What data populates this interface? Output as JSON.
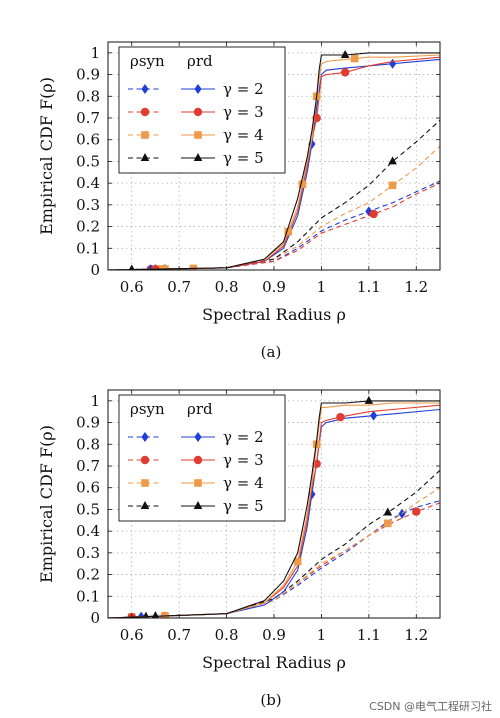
{
  "colors": {
    "blue": "#1f3fd6",
    "red": "#e03c31",
    "orange": "#ef9a4a",
    "black": "#111111"
  },
  "watermark": "CSDN @电气工程研习社",
  "chart_data": [
    {
      "type": "line",
      "caption": "(a)",
      "xlabel": "Spectral Radius ρ",
      "ylabel": "Empirical CDF F(ρ)",
      "xlim": [
        0.55,
        1.25
      ],
      "ylim": [
        0,
        1.05
      ],
      "xticks": [
        "0.6",
        "0.7",
        "0.8",
        "0.9",
        "1",
        "1.1",
        "1.2"
      ],
      "yticks": [
        "0",
        "0.1",
        "0.2",
        "0.3",
        "0.4",
        "0.5",
        "0.6",
        "0.7",
        "0.8",
        "0.9",
        "1"
      ],
      "grid": true,
      "legend": {
        "position": "top-left",
        "headers": [
          "ρsyn",
          "ρrd"
        ],
        "entries": [
          "γ = 2",
          "γ = 3",
          "γ = 4",
          "γ = 5"
        ]
      },
      "series": [
        {
          "name": "ρsyn, γ = 2",
          "color": "blue",
          "style": "dashed",
          "marker": "diamond",
          "x": [
            0.55,
            0.8,
            0.9,
            0.95,
            1.0,
            1.05,
            1.1,
            1.15,
            1.2,
            1.25
          ],
          "y": [
            0,
            0.01,
            0.04,
            0.1,
            0.18,
            0.23,
            0.27,
            0.31,
            0.36,
            0.41
          ],
          "markers_at": [
            0.65,
            1.1
          ]
        },
        {
          "name": "ρsyn, γ = 3",
          "color": "red",
          "style": "dashed",
          "marker": "circle",
          "x": [
            0.55,
            0.8,
            0.9,
            0.95,
            1.0,
            1.05,
            1.1,
            1.15,
            1.2,
            1.25
          ],
          "y": [
            0,
            0.01,
            0.04,
            0.09,
            0.17,
            0.21,
            0.25,
            0.29,
            0.35,
            0.4
          ],
          "markers_at": [
            0.64,
            1.11
          ]
        },
        {
          "name": "ρsyn, γ = 4",
          "color": "orange",
          "style": "dashed",
          "marker": "square",
          "x": [
            0.55,
            0.8,
            0.9,
            0.95,
            1.0,
            1.05,
            1.1,
            1.15,
            1.2,
            1.25
          ],
          "y": [
            0,
            0.01,
            0.05,
            0.11,
            0.2,
            0.26,
            0.31,
            0.39,
            0.47,
            0.57
          ],
          "markers_at": [
            0.66,
            0.73,
            1.15
          ]
        },
        {
          "name": "ρsyn, γ = 5",
          "color": "black",
          "style": "dashed",
          "marker": "triangle",
          "x": [
            0.55,
            0.8,
            0.9,
            0.95,
            1.0,
            1.05,
            1.1,
            1.15,
            1.2,
            1.25
          ],
          "y": [
            0,
            0.01,
            0.05,
            0.13,
            0.24,
            0.31,
            0.39,
            0.5,
            0.59,
            0.69
          ],
          "markers_at": [
            0.6,
            0.67,
            1.15
          ]
        },
        {
          "name": "ρrd, γ = 2",
          "color": "blue",
          "style": "solid",
          "marker": "diamond",
          "x": [
            0.55,
            0.8,
            0.88,
            0.92,
            0.95,
            0.97,
            0.98,
            0.99,
            1.0,
            1.01,
            1.05,
            1.1,
            1.15,
            1.25
          ],
          "y": [
            0,
            0.01,
            0.04,
            0.1,
            0.25,
            0.45,
            0.58,
            0.75,
            0.9,
            0.92,
            0.93,
            0.94,
            0.95,
            0.97
          ],
          "markers_at": [
            0.64,
            0.98,
            1.15
          ]
        },
        {
          "name": "ρrd, γ = 3",
          "color": "red",
          "style": "solid",
          "marker": "circle",
          "x": [
            0.55,
            0.8,
            0.88,
            0.92,
            0.95,
            0.97,
            0.98,
            0.99,
            1.0,
            1.01,
            1.05,
            1.1,
            1.15,
            1.25
          ],
          "y": [
            0,
            0.01,
            0.04,
            0.11,
            0.27,
            0.48,
            0.6,
            0.7,
            0.89,
            0.9,
            0.91,
            0.94,
            0.96,
            0.98
          ],
          "markers_at": [
            0.65,
            0.99,
            1.05
          ]
        },
        {
          "name": "ρrd, γ = 4",
          "color": "orange",
          "style": "solid",
          "marker": "square",
          "x": [
            0.55,
            0.8,
            0.88,
            0.92,
            0.95,
            0.97,
            0.98,
            0.99,
            1.0,
            1.01,
            1.05,
            1.1,
            1.15,
            1.25
          ],
          "y": [
            0,
            0.01,
            0.05,
            0.12,
            0.29,
            0.5,
            0.6,
            0.8,
            0.95,
            0.96,
            0.97,
            0.98,
            0.98,
            0.99
          ],
          "markers_at": [
            0.67,
            0.93,
            0.96,
            0.99,
            1.07
          ]
        },
        {
          "name": "ρrd, γ = 5",
          "color": "black",
          "style": "solid",
          "marker": "triangle",
          "x": [
            0.55,
            0.8,
            0.88,
            0.92,
            0.95,
            0.97,
            0.98,
            0.99,
            0.995,
            1.0,
            1.05,
            1.1,
            1.25
          ],
          "y": [
            0,
            0.01,
            0.05,
            0.13,
            0.33,
            0.52,
            0.64,
            0.8,
            0.92,
            0.99,
            0.99,
            1.0,
            1.0
          ],
          "markers_at": [
            0.6,
            1.05
          ]
        }
      ]
    },
    {
      "type": "line",
      "caption": "(b)",
      "xlabel": "Spectral Radius ρ",
      "ylabel": "Empirical CDF F(ρ)",
      "xlim": [
        0.55,
        1.25
      ],
      "ylim": [
        0,
        1.05
      ],
      "xticks": [
        "0.6",
        "0.7",
        "0.8",
        "0.9",
        "1",
        "1.1",
        "1.2"
      ],
      "yticks": [
        "0",
        "0.1",
        "0.2",
        "0.3",
        "0.4",
        "0.5",
        "0.6",
        "0.7",
        "0.8",
        "0.9",
        "1"
      ],
      "grid": true,
      "legend": {
        "position": "top-left",
        "headers": [
          "ρsyn",
          "ρrd"
        ],
        "entries": [
          "γ = 2",
          "γ = 3",
          "γ = 4",
          "γ = 5"
        ]
      },
      "series": [
        {
          "name": "ρsyn, γ = 2",
          "color": "blue",
          "style": "dashed",
          "marker": "diamond",
          "x": [
            0.55,
            0.8,
            0.9,
            0.95,
            1.0,
            1.05,
            1.1,
            1.15,
            1.2,
            1.25
          ],
          "y": [
            0,
            0.02,
            0.08,
            0.15,
            0.23,
            0.3,
            0.38,
            0.46,
            0.51,
            0.54
          ],
          "markers_at": [
            0.62,
            1.17
          ]
        },
        {
          "name": "ρsyn, γ = 3",
          "color": "red",
          "style": "dashed",
          "marker": "circle",
          "x": [
            0.55,
            0.8,
            0.9,
            0.95,
            1.0,
            1.05,
            1.1,
            1.15,
            1.2,
            1.25
          ],
          "y": [
            0,
            0.02,
            0.08,
            0.16,
            0.24,
            0.31,
            0.38,
            0.44,
            0.49,
            0.53
          ],
          "markers_at": [
            0.6,
            0.67,
            1.2
          ]
        },
        {
          "name": "ρsyn, γ = 4",
          "color": "orange",
          "style": "dashed",
          "marker": "square",
          "x": [
            0.55,
            0.8,
            0.9,
            0.95,
            1.0,
            1.05,
            1.1,
            1.15,
            1.2,
            1.25
          ],
          "y": [
            0,
            0.02,
            0.08,
            0.16,
            0.25,
            0.31,
            0.38,
            0.45,
            0.53,
            0.6
          ],
          "markers_at": [
            0.6,
            1.14
          ]
        },
        {
          "name": "ρsyn, γ = 5",
          "color": "black",
          "style": "dashed",
          "marker": "triangle",
          "x": [
            0.55,
            0.8,
            0.9,
            0.95,
            1.0,
            1.05,
            1.1,
            1.15,
            1.2,
            1.25
          ],
          "y": [
            0,
            0.02,
            0.09,
            0.17,
            0.27,
            0.34,
            0.43,
            0.5,
            0.58,
            0.68
          ],
          "markers_at": [
            0.63,
            0.65,
            1.14
          ]
        },
        {
          "name": "ρrd, γ = 2",
          "color": "blue",
          "style": "solid",
          "marker": "diamond",
          "x": [
            0.55,
            0.8,
            0.88,
            0.92,
            0.95,
            0.97,
            0.98,
            0.99,
            1.0,
            1.01,
            1.05,
            1.1,
            1.15,
            1.25
          ],
          "y": [
            0,
            0.02,
            0.06,
            0.12,
            0.22,
            0.42,
            0.57,
            0.72,
            0.88,
            0.9,
            0.92,
            0.93,
            0.94,
            0.96
          ],
          "markers_at": [
            0.62,
            0.98,
            1.11
          ]
        },
        {
          "name": "ρrd, γ = 3",
          "color": "red",
          "style": "solid",
          "marker": "circle",
          "x": [
            0.55,
            0.8,
            0.88,
            0.92,
            0.95,
            0.97,
            0.98,
            0.99,
            1.0,
            1.01,
            1.05,
            1.1,
            1.15,
            1.25
          ],
          "y": [
            0,
            0.02,
            0.07,
            0.14,
            0.24,
            0.45,
            0.6,
            0.71,
            0.9,
            0.91,
            0.93,
            0.95,
            0.96,
            0.98
          ],
          "markers_at": [
            0.6,
            0.99,
            1.04
          ]
        },
        {
          "name": "ρrd, γ = 4",
          "color": "orange",
          "style": "solid",
          "marker": "square",
          "x": [
            0.55,
            0.8,
            0.88,
            0.92,
            0.95,
            0.97,
            0.98,
            0.99,
            1.0,
            1.01,
            1.05,
            1.1,
            1.15,
            1.25
          ],
          "y": [
            0,
            0.02,
            0.07,
            0.15,
            0.26,
            0.48,
            0.62,
            0.8,
            0.97,
            0.97,
            0.98,
            0.98,
            0.99,
            0.99
          ],
          "markers_at": [
            0.67,
            0.95,
            0.99
          ]
        },
        {
          "name": "ρrd, γ = 5",
          "color": "black",
          "style": "solid",
          "marker": "triangle",
          "x": [
            0.55,
            0.8,
            0.88,
            0.92,
            0.95,
            0.97,
            0.98,
            0.99,
            0.995,
            1.0,
            1.05,
            1.1,
            1.25
          ],
          "y": [
            0,
            0.02,
            0.08,
            0.17,
            0.3,
            0.52,
            0.66,
            0.82,
            0.92,
            0.99,
            0.99,
            1.0,
            1.0
          ],
          "markers_at": [
            0.65,
            1.1
          ]
        }
      ]
    }
  ]
}
